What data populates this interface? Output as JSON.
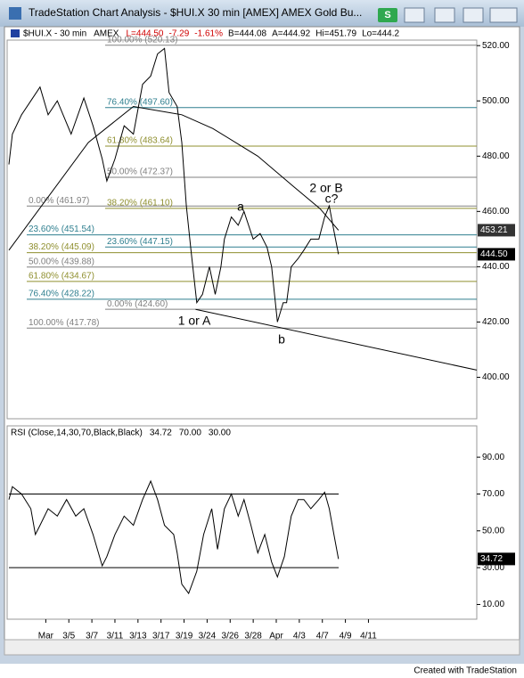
{
  "window": {
    "title": "TradeStation Chart Analysis - $HUI.X  30 min  [AMEX] AMEX Gold Bu...",
    "button": "S",
    "footer": "Created with TradeStation"
  },
  "chart_data": [
    {
      "type": "line",
      "title": "$HUI.X - 30 min",
      "exchange": "AMEX",
      "quote": [
        {
          "text": "L=444.50",
          "color": "#d00000"
        },
        {
          "text": "-7.29",
          "color": "#d00000"
        },
        {
          "text": "-1.61%",
          "color": "#d00000"
        },
        {
          "text": "B=444.08",
          "color": "#000000"
        },
        {
          "text": "A=444.92",
          "color": "#000000"
        },
        {
          "text": "Hi=451.79",
          "color": "#000000"
        },
        {
          "text": "Lo=444.2",
          "color": "#000000"
        }
      ],
      "xlim": [
        -3.2,
        37.4
      ],
      "ylim": [
        385,
        522
      ],
      "yticks": [
        {
          "value": 400,
          "label": "400.00"
        },
        {
          "value": 420,
          "label": "420.00"
        },
        {
          "value": 440,
          "label": "440.00"
        },
        {
          "value": 460,
          "label": "460.00"
        },
        {
          "value": 480,
          "label": "480.00"
        },
        {
          "value": 500,
          "label": "500.00"
        },
        {
          "value": 520,
          "label": "520.00"
        }
      ],
      "series": [
        {
          "color": "#000000",
          "x": [
            -3.2,
            -2.9,
            -2.1,
            -1.3,
            -0.5,
            0.2,
            1.0,
            2.2,
            3.3,
            4.1,
            4.9,
            5.3,
            6.0,
            6.8,
            7.6,
            8.4,
            9.1,
            9.7,
            10.3,
            10.7,
            11.4,
            11.8,
            12.2,
            12.6,
            13.1,
            13.6,
            14.2,
            14.7,
            15.2,
            15.5,
            16.1,
            16.7,
            17.2,
            18.0,
            18.6,
            19.2,
            19.6,
            20.1,
            20.6,
            20.9,
            21.3,
            21.9,
            22.4,
            23.0,
            23.7,
            24.2,
            24.6,
            25.0,
            25.4
          ],
          "values": [
            477,
            488,
            495,
            500,
            505,
            495,
            500,
            488,
            501,
            491,
            479,
            471,
            479,
            491,
            488,
            506,
            509,
            517,
            519,
            503,
            498,
            485,
            462,
            446,
            427,
            430,
            440,
            430,
            440,
            450,
            458,
            455,
            460,
            450,
            452,
            447,
            440,
            420,
            427,
            427,
            440,
            443,
            446,
            450,
            450,
            458,
            462,
            453,
            444.5
          ]
        },
        {
          "color": "#000000",
          "x": [
            -3.2,
            3.7,
            7.6,
            11.8,
            14.5,
            18.4,
            21.5,
            23.8,
            25.4
          ],
          "values": [
            446,
            485,
            498,
            495,
            490,
            480,
            469,
            461,
            453.21
          ]
        },
        {
          "color": "#000000",
          "x": [
            13.0,
            37.4
          ],
          "values": [
            424.6,
            402.6
          ]
        }
      ],
      "fib_left": [
        {
          "value": 461.97,
          "label": "0.00% (461.97)",
          "color": "#808080"
        },
        {
          "value": 451.54,
          "label": "23.60% (451.54)",
          "color": "#2f7f8f"
        },
        {
          "value": 445.09,
          "label": "38.20% (445.09)",
          "color": "#8f8f2f"
        },
        {
          "value": 439.88,
          "label": "50.00% (439.88)",
          "color": "#808080"
        },
        {
          "value": 434.67,
          "label": "61.80% (434.67)",
          "color": "#8f8f2f"
        },
        {
          "value": 428.22,
          "label": "76.40% (428.22)",
          "color": "#2f7f8f"
        },
        {
          "value": 417.78,
          "label": "100.00% (417.78)",
          "color": "#808080"
        }
      ],
      "fib_right": [
        {
          "value": 520.13,
          "label": "100.00% (520.13)",
          "color": "#808080"
        },
        {
          "value": 497.6,
          "label": "76.40% (497.60)",
          "color": "#2f7f8f"
        },
        {
          "value": 483.64,
          "label": "61.80% (483.64)",
          "color": "#8f8f2f"
        },
        {
          "value": 472.37,
          "label": "50.00% (472.37)",
          "color": "#808080"
        },
        {
          "value": 461.1,
          "label": "38.20% (461.10)",
          "color": "#8f8f2f"
        },
        {
          "value": 447.15,
          "label": "23.60% (447.15)",
          "color": "#2f7f8f"
        },
        {
          "value": 424.6,
          "label": "0.00% (424.60)",
          "color": "#808080"
        }
      ],
      "last_labels": [
        {
          "value": 453.21,
          "label": "453.21",
          "color": "#333333"
        },
        {
          "value": 444.5,
          "label": "444.50",
          "color": "#000000"
        }
      ],
      "annotations": [
        "2 or B",
        "a",
        "c?",
        "1 or A",
        "b"
      ]
    },
    {
      "type": "line",
      "title": "RSI (Close,14,30,70,Black,Black)",
      "xlim": [
        -3.2,
        37.4
      ],
      "ylim": [
        2,
        107
      ],
      "yticks": [
        {
          "value": 10,
          "label": "10.00"
        },
        {
          "value": 30,
          "label": "30.00"
        },
        {
          "value": 50,
          "label": "50.00"
        },
        {
          "value": 70,
          "label": "70.00"
        },
        {
          "value": 90,
          "label": "90.00"
        }
      ],
      "xticks": [
        {
          "value": 0,
          "label": "Mar"
        },
        {
          "value": 2,
          "label": "3/5"
        },
        {
          "value": 4,
          "label": "3/7"
        },
        {
          "value": 6,
          "label": "3/11"
        },
        {
          "value": 8,
          "label": "3/13"
        },
        {
          "value": 10,
          "label": "3/17"
        },
        {
          "value": 12,
          "label": "3/19"
        },
        {
          "value": 14,
          "label": "3/24"
        },
        {
          "value": 16,
          "label": "3/26"
        },
        {
          "value": 18,
          "label": "3/28"
        },
        {
          "value": 20,
          "label": "Apr"
        },
        {
          "value": 22,
          "label": "4/3"
        },
        {
          "value": 24,
          "label": "4/7"
        },
        {
          "value": 26,
          "label": "4/9"
        },
        {
          "value": 28,
          "label": "4/11"
        }
      ],
      "series": [
        {
          "color": "#000000",
          "x": [
            -3.2,
            -2.9,
            -2.1,
            -1.3,
            -0.9,
            -0.5,
            0.2,
            1.0,
            1.8,
            2.6,
            3.3,
            4.1,
            4.9,
            5.3,
            6.0,
            6.8,
            7.6,
            8.4,
            9.1,
            9.7,
            10.3,
            11.1,
            11.4,
            11.8,
            12.4,
            13.1,
            13.7,
            14.4,
            14.9,
            15.5,
            16.1,
            16.7,
            17.2,
            17.8,
            18.4,
            19.0,
            19.6,
            20.1,
            20.7,
            21.3,
            21.9,
            22.4,
            23.0,
            23.7,
            24.2,
            24.6,
            25.0,
            25.4
          ],
          "values": [
            67,
            74,
            70,
            62,
            48,
            53,
            62,
            58,
            67,
            58,
            62,
            48,
            31,
            36,
            48,
            58,
            53,
            67,
            77,
            67,
            53,
            48,
            38,
            21,
            16,
            28,
            48,
            62,
            40,
            62,
            70,
            58,
            67,
            53,
            38,
            48,
            33,
            25,
            36,
            58,
            67,
            67,
            62,
            67,
            71,
            62,
            48,
            34.72
          ]
        }
      ],
      "levels": [
        {
          "value": 70,
          "label": "70.00"
        },
        {
          "value": 30,
          "label": "30.00"
        }
      ],
      "last_labels": [
        {
          "value": 34.72,
          "label": "34.72",
          "color": "#000000"
        }
      ]
    }
  ]
}
